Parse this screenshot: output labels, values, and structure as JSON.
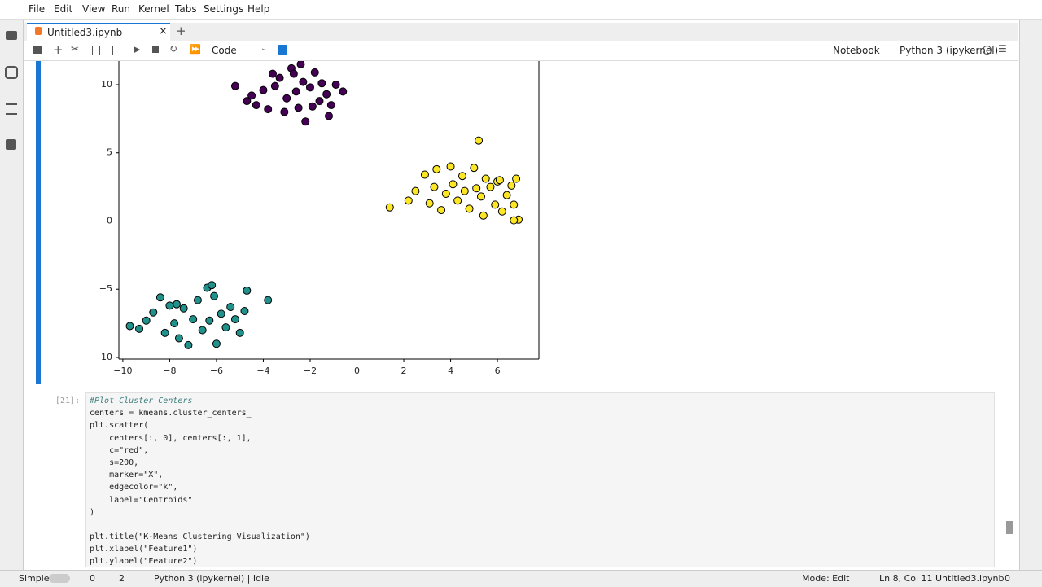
{
  "menu": [
    "File",
    "Edit",
    "View",
    "Run",
    "Kernel",
    "Tabs",
    "Settings",
    "Help"
  ],
  "tab": {
    "title": "Untitled3.ipynb",
    "add": "+"
  },
  "toolbar": {
    "cell_type": "Code",
    "notebook": "Notebook",
    "kernel": "Python 3 (ipykernel)"
  },
  "chart_data": {
    "type": "scatter",
    "xlim": [
      -10.17,
      7.77
    ],
    "ylim": [
      -10.12,
      11.73
    ],
    "xticks": [
      {
        "value": -10,
        "label": "−10"
      },
      {
        "value": -8,
        "label": "−8"
      },
      {
        "value": -6,
        "label": "−6"
      },
      {
        "value": -4,
        "label": "−4"
      },
      {
        "value": -2,
        "label": "−2"
      },
      0,
      2,
      4,
      6
    ],
    "yticks": [
      {
        "value": -10,
        "label": "−10"
      },
      {
        "value": -5,
        "label": "−5"
      },
      0,
      5,
      10
    ],
    "series": [
      {
        "color": "#440154",
        "x": [
          -5.2,
          -4.5,
          -4.3,
          -4,
          -3.8,
          -3.5,
          -3.3,
          -3,
          -2.8,
          -2.6,
          -2.5,
          -2.3,
          -2.2,
          -2,
          -1.8,
          -1.6,
          -1.5,
          -1.3,
          -1.1,
          -0.9,
          -0.6,
          -1.2,
          -3.1,
          -2.7,
          -2.4,
          -3.6,
          -1.9,
          -4.7
        ],
        "y": [
          9.9,
          9.2,
          8.5,
          9.6,
          8.2,
          9.9,
          10.5,
          9,
          11.2,
          9.5,
          8.3,
          10.2,
          7.3,
          9.8,
          10.9,
          8.8,
          10.1,
          9.3,
          8.5,
          10,
          9.5,
          7.7,
          8,
          10.8,
          11.5,
          10.8,
          8.4,
          8.8
        ]
      },
      {
        "color": "#fde725",
        "x": [
          1.4,
          2.2,
          2.5,
          2.9,
          3.1,
          3.3,
          3.4,
          3.6,
          3.8,
          4,
          4.1,
          4.3,
          4.5,
          4.6,
          4.8,
          5,
          5.1,
          5.2,
          5.3,
          5.4,
          5.5,
          5.7,
          5.9,
          6,
          6.2,
          6.4,
          6.6,
          6.7,
          6.8,
          6.9,
          6.7,
          6.1
        ],
        "y": [
          1,
          1.5,
          2.2,
          3.4,
          1.3,
          2.5,
          3.8,
          0.8,
          2,
          4,
          2.7,
          1.5,
          3.3,
          2.2,
          0.9,
          3.9,
          2.4,
          5.9,
          1.8,
          0.4,
          3.1,
          2.5,
          1.2,
          2.9,
          0.7,
          1.9,
          2.6,
          1.2,
          3.1,
          0.1,
          0.05,
          3
        ]
      },
      {
        "color": "#21918c",
        "x": [
          -9.7,
          -9.3,
          -9,
          -8.7,
          -8.4,
          -8.2,
          -8,
          -7.8,
          -7.6,
          -7.4,
          -7.2,
          -7,
          -6.8,
          -6.6,
          -6.4,
          -6.3,
          -6.1,
          -6,
          -5.8,
          -5.6,
          -5.4,
          -5.2,
          -5,
          -4.8,
          -4.7,
          -3.8,
          -6.2,
          -7.7
        ],
        "y": [
          -7.7,
          -7.9,
          -7.3,
          -6.7,
          -5.6,
          -8.2,
          -6.2,
          -7.5,
          -8.6,
          -6.4,
          -9.1,
          -7.2,
          -5.8,
          -8,
          -4.9,
          -7.3,
          -5.5,
          -9,
          -6.8,
          -7.8,
          -6.3,
          -7.2,
          -8.2,
          -6.6,
          -5.1,
          -5.8,
          -4.7,
          -6.1
        ]
      }
    ]
  },
  "cell": {
    "prompt": "[21]:",
    "lines_a": [
      "#Plot Cluster Centers",
      "centers = kmeans.cluster_centers_",
      "plt.scatter(",
      "    centers[:, 0], centers[:, 1],",
      "    c=\"red\",",
      "    s=200,",
      "    marker=\"X\",",
      "    edgecolor=\"k\",",
      "    label=\"Centroids\"",
      ")"
    ],
    "lines_b": [
      "plt.title(\"K-Means Clustering Visualization\")",
      "plt.xlabel(\"Feature1\")",
      "plt.ylabel(\"Feature2\")"
    ]
  },
  "status": {
    "mode_label": "Simple",
    "terminals": "0",
    "kernels": "2",
    "kernel": "Python 3 (ipykernel) | Idle",
    "mode": "Mode: Edit",
    "position": "Ln 8, Col 11",
    "file": "Untitled3.ipynb",
    "notifications": "0"
  }
}
